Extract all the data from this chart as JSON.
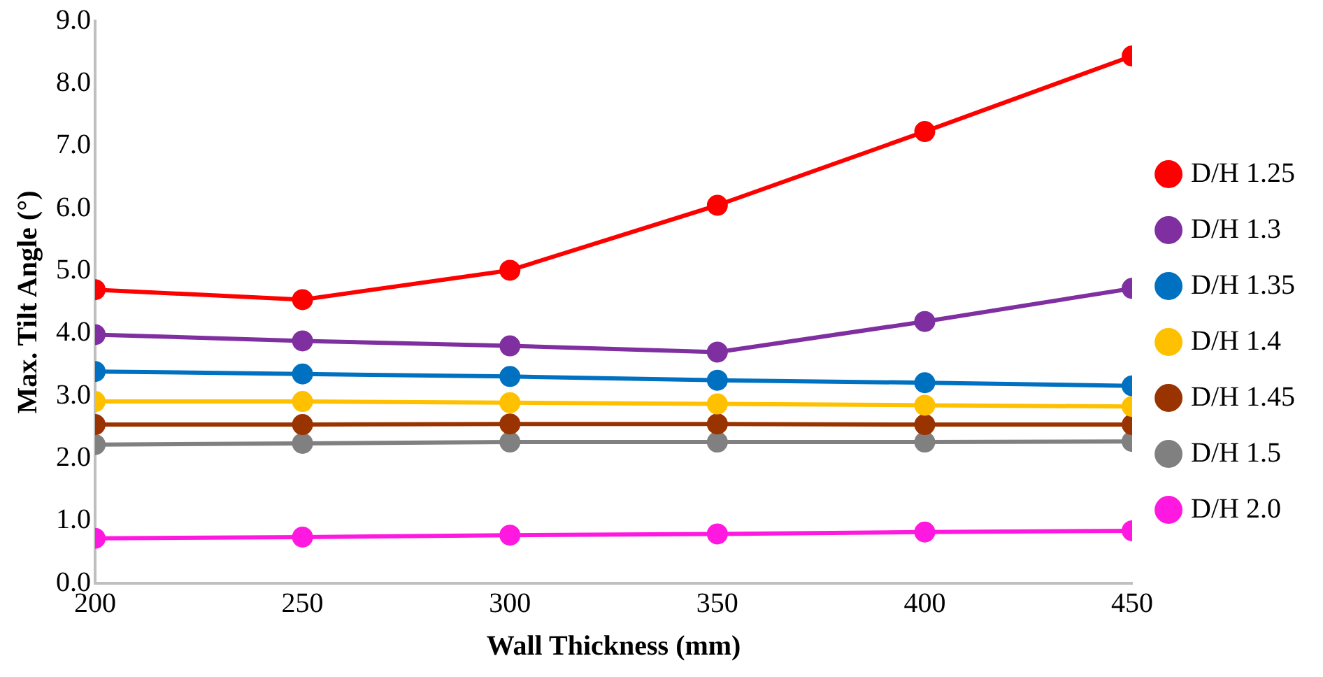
{
  "chart_data": {
    "type": "line",
    "xlabel": "Wall Thickness (mm)",
    "ylabel": "Max. Tilt Angle (°)",
    "x": [
      200,
      250,
      300,
      350,
      400,
      450
    ],
    "xlim": [
      200,
      450
    ],
    "xticks": [
      200,
      250,
      300,
      350,
      400,
      450
    ],
    "ylim": [
      0,
      9
    ],
    "yticks": [
      {
        "value": 0,
        "label": "0.0"
      },
      {
        "value": 1,
        "label": "1.0"
      },
      {
        "value": 2,
        "label": "2.0"
      },
      {
        "value": 3,
        "label": "3.0"
      },
      {
        "value": 4,
        "label": "4.0"
      },
      {
        "value": 5,
        "label": "5.0"
      },
      {
        "value": 6,
        "label": "6.0"
      },
      {
        "value": 7,
        "label": "7.0"
      },
      {
        "value": 8,
        "label": "8.0"
      },
      {
        "value": 9,
        "label": "9.0"
      }
    ],
    "grid": false,
    "legend": "right",
    "marker": "circle",
    "line_style": "solid",
    "series": [
      {
        "name": "D/H 1.25",
        "color": "#ff0000",
        "values": [
          4.7,
          4.54,
          5.01,
          6.05,
          7.23,
          8.44
        ]
      },
      {
        "name": "D/H 1.3",
        "color": "#7f2fa0",
        "values": [
          3.98,
          3.88,
          3.8,
          3.7,
          4.19,
          4.72
        ]
      },
      {
        "name": "D/H 1.35",
        "color": "#0070c0",
        "values": [
          3.39,
          3.35,
          3.31,
          3.25,
          3.21,
          3.16
        ]
      },
      {
        "name": "D/H 1.4",
        "color": "#ffc000",
        "values": [
          2.91,
          2.91,
          2.89,
          2.87,
          2.85,
          2.83
        ]
      },
      {
        "name": "D/H 1.45",
        "color": "#993300",
        "values": [
          2.54,
          2.54,
          2.55,
          2.55,
          2.54,
          2.54
        ]
      },
      {
        "name": "D/H 1.5",
        "color": "#808080",
        "values": [
          2.22,
          2.24,
          2.26,
          2.26,
          2.26,
          2.27
        ]
      },
      {
        "name": "D/H 2.0",
        "color": "#ff19e0",
        "values": [
          0.72,
          0.74,
          0.77,
          0.79,
          0.82,
          0.84
        ]
      }
    ]
  }
}
